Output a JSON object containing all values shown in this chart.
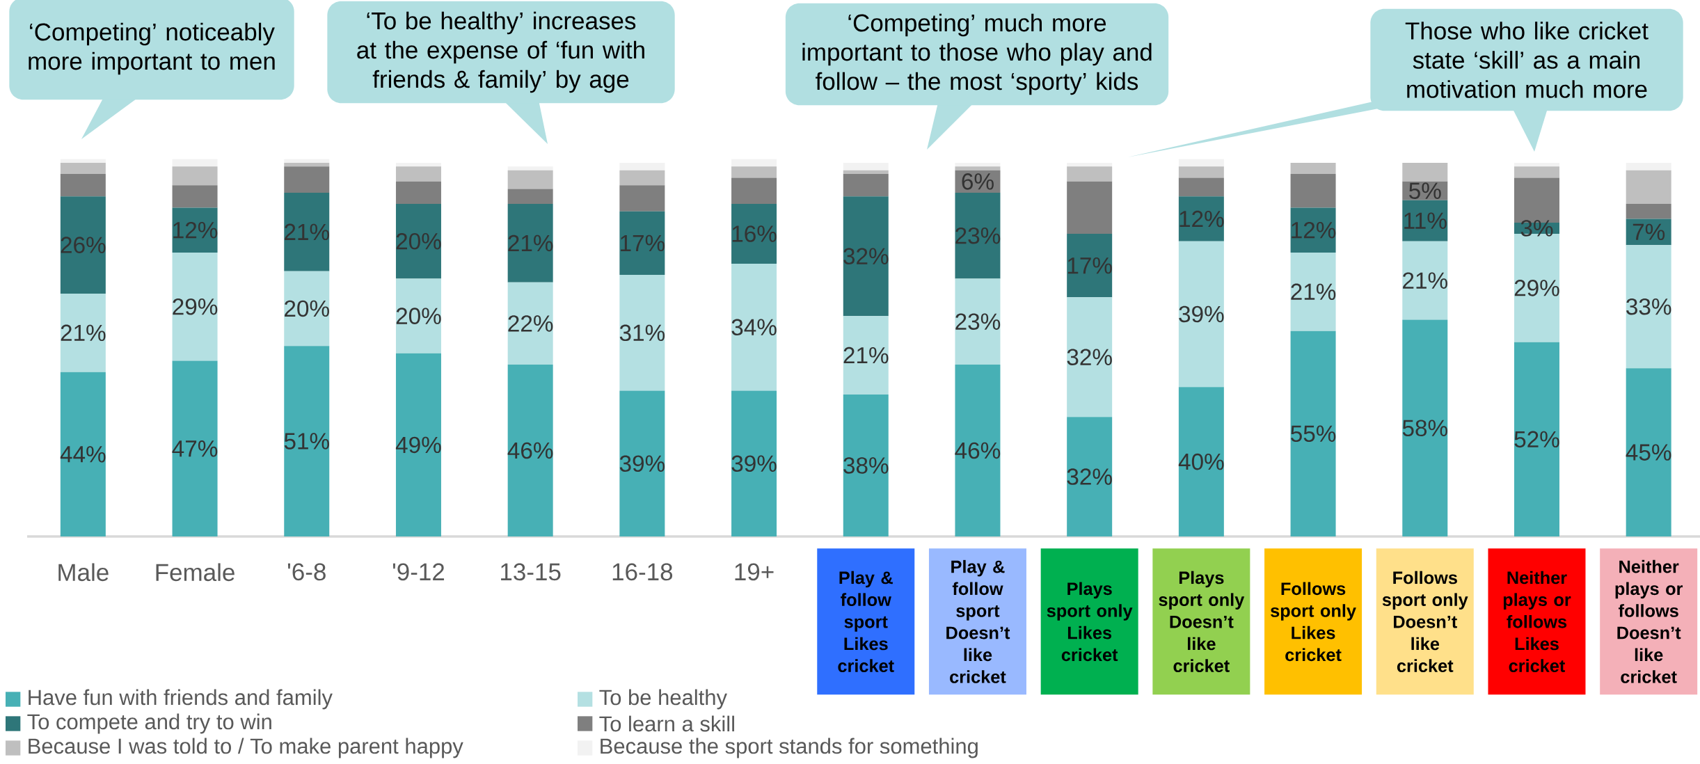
{
  "chart_data": {
    "type": "bar",
    "stacked": true,
    "legend": "bottom left",
    "categories": [
      "Male",
      "Female",
      "'6-8",
      "'9-12",
      "13-15",
      "16-18",
      "19+",
      "Play & follow sport Likes cricket",
      "Play & follow sport Doesn’t like cricket",
      "Plays sport only Likes cricket",
      "Plays sport only Doesn’t like cricket",
      "Follows sport only Likes cricket",
      "Follows sport only Doesn’t like cricket",
      "Neither plays or follows Likes cricket",
      "Neither plays or follows Doesn’t like cricket"
    ],
    "series": [
      {
        "name": "Have fun with friends and family",
        "color": "#47b0b5",
        "values": [
          44,
          47,
          51,
          49,
          46,
          39,
          39,
          38,
          46,
          32,
          40,
          55,
          58,
          52,
          45
        ],
        "value_labels": [
          "44%",
          "47%",
          "51%",
          "49%",
          "46%",
          "39%",
          "39%",
          "38%",
          "46%",
          "32%",
          "40%",
          "55%",
          "58%",
          "52%",
          "45%"
        ]
      },
      {
        "name": "To be healthy",
        "color": "#b4e0e2",
        "values": [
          21,
          29,
          20,
          20,
          22,
          31,
          34,
          21,
          23,
          32,
          39,
          21,
          21,
          29,
          33
        ],
        "value_labels": [
          "21%",
          "29%",
          "20%",
          "20%",
          "22%",
          "31%",
          "34%",
          "21%",
          "23%",
          "32%",
          "39%",
          "21%",
          "21%",
          "29%",
          "33%"
        ]
      },
      {
        "name": "To compete and try to win",
        "color": "#2e7679",
        "values": [
          26,
          12,
          21,
          20,
          21,
          17,
          16,
          32,
          23,
          17,
          12,
          12,
          11,
          3,
          7
        ],
        "value_labels": [
          "26%",
          "12%",
          "21%",
          "20%",
          "21%",
          "17%",
          "16%",
          "32%",
          "23%",
          "17%",
          "12%",
          "12%",
          "11%",
          "3%",
          "7%"
        ]
      },
      {
        "name": "To learn a skill",
        "color": "#7f7f7f",
        "values": [
          6,
          6,
          7,
          6,
          4,
          7,
          7,
          6,
          6,
          14,
          5,
          9,
          5,
          12,
          4
        ],
        "value_labels": [
          null,
          null,
          null,
          null,
          null,
          null,
          null,
          null,
          "6%",
          null,
          null,
          null,
          "5%",
          null,
          null
        ]
      },
      {
        "name": "Because I was told to / To make parent happy",
        "color": "#bfbfbf",
        "values": [
          3,
          5,
          1,
          4,
          5,
          4,
          3,
          1,
          1,
          4,
          3,
          3,
          5,
          3,
          9
        ]
      },
      {
        "name": "Because the sport stands for something",
        "color": "#f2f2f2",
        "values": [
          1,
          2,
          1,
          1,
          1,
          2,
          2,
          2,
          1,
          1,
          2,
          0,
          0,
          1,
          2
        ]
      }
    ],
    "annotations": [
      "‘Competing’ noticeably more important to men",
      "‘To be healthy’ increases at the expense of ‘fun with friends & family’ by age",
      "‘Competing’ much more important to those who play and follow – the most ‘sporty’ kids",
      "Those who like cricket state ‘skill’ as a main motivation much more"
    ]
  }
}
